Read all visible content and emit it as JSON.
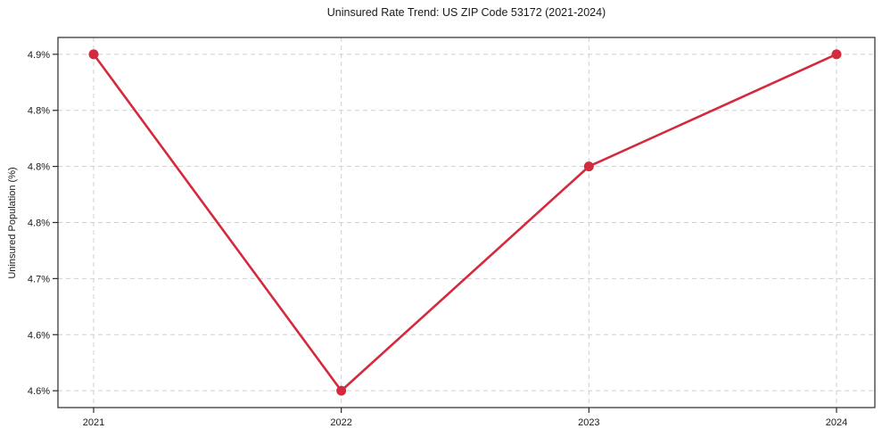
{
  "chart_data": {
    "type": "line",
    "title": "Uninsured Rate Trend: US ZIP Code 53172 (2021-2024)",
    "xlabel": "",
    "ylabel": "Uninsured Population (%)",
    "x": [
      2021,
      2022,
      2023,
      2024
    ],
    "values": [
      4.9,
      4.6,
      4.8,
      4.9
    ],
    "ylim": [
      4.585,
      4.915
    ],
    "grid": true,
    "legend": "none",
    "yticks": {
      "values": [
        4.9,
        4.85,
        4.8,
        4.75,
        4.7,
        4.65,
        4.6
      ],
      "labels": [
        "4.9%",
        "4.8%",
        "4.8%",
        "4.8%",
        "4.7%",
        "4.6%",
        "4.6%"
      ]
    },
    "xticks": {
      "values": [
        2021,
        2022,
        2023,
        2024
      ],
      "labels": [
        "2021",
        "2022",
        "2023",
        "2024"
      ]
    },
    "colors": {
      "line": "#d42a3d",
      "marker": "#d42a3d",
      "grid": "#cfcfcf",
      "axis": "#2a2a2a",
      "text": "#1a1a1a",
      "background": "#ffffff"
    }
  }
}
